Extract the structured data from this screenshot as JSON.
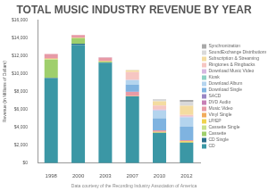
{
  "chart_data": {
    "type": "bar",
    "title": "TOTAL MUSIC INDUSTRY REVENUE BY YEAR",
    "subtitle": "Data courtesy of the Recording Industry Association of America",
    "y_label": "Revenue (in Millions of Dollars)",
    "categories": [
      "1998",
      "2000",
      "2003",
      "2007",
      "2010",
      "2012"
    ],
    "stacked": true,
    "legend": "right",
    "grid": false,
    "ylim": [
      0,
      16000
    ],
    "yticks": [
      {
        "value": 0,
        "label": "$0"
      },
      {
        "value": 2000,
        "label": "$2,000"
      },
      {
        "value": 4000,
        "label": "$4,000"
      },
      {
        "value": 6000,
        "label": "$6,000"
      },
      {
        "value": 8000,
        "label": "$8,000"
      },
      {
        "value": 10000,
        "label": "$10,000"
      },
      {
        "value": 12000,
        "label": "$12,000"
      },
      {
        "value": 14000,
        "label": "$14,000"
      },
      {
        "value": 16000,
        "label": "$16,000"
      }
    ],
    "series": [
      {
        "name": "CD",
        "color": "#3b97a5",
        "values": [
          9480,
          13200,
          11200,
          7450,
          3400,
          2300
        ]
      },
      {
        "name": "CD Single",
        "color": "#2c6f8c",
        "values": [
          60,
          140,
          40,
          10,
          0,
          0
        ]
      },
      {
        "name": "Cassette",
        "color": "#9fcf6c",
        "values": [
          2000,
          630,
          110,
          3,
          0,
          0
        ]
      },
      {
        "name": "Cassette Single",
        "color": "#c9e08c",
        "values": [
          90,
          5,
          0,
          0,
          0,
          0
        ]
      },
      {
        "name": "LP/EP",
        "color": "#efd24e",
        "values": [
          30,
          30,
          20,
          20,
          90,
          160
        ]
      },
      {
        "name": "Vinyl Single",
        "color": "#f1ab5c",
        "values": [
          30,
          25,
          20,
          5,
          5,
          5
        ]
      },
      {
        "name": "Music Video",
        "color": "#e79aa6",
        "values": [
          510,
          280,
          400,
          480,
          170,
          100
        ]
      },
      {
        "name": "DVD Audio",
        "color": "#c77fb5",
        "values": [
          0,
          0,
          10,
          3,
          0,
          0
        ]
      },
      {
        "name": "SACD",
        "color": "#9a86c4",
        "values": [
          0,
          0,
          25,
          3,
          0,
          0
        ]
      },
      {
        "name": "Download Single",
        "color": "#7fb3e0",
        "values": [
          0,
          0,
          0,
          810,
          1340,
          1500
        ]
      },
      {
        "name": "Download Album",
        "color": "#b4d4ee",
        "values": [
          0,
          0,
          0,
          500,
          880,
          1050
        ]
      },
      {
        "name": "Kiosk",
        "color": "#8fd1c4",
        "values": [
          0,
          0,
          0,
          2,
          6,
          2
        ]
      },
      {
        "name": "Download Music Video",
        "color": "#d6b7e0",
        "values": [
          0,
          0,
          0,
          30,
          110,
          100
        ]
      },
      {
        "name": "Ringtones & Ringbacks",
        "color": "#f6c6c2",
        "values": [
          0,
          0,
          0,
          870,
          450,
          170
        ]
      },
      {
        "name": "Subscription & Streaming",
        "color": "#f4dca0",
        "values": [
          0,
          0,
          0,
          200,
          470,
          1020
        ]
      },
      {
        "name": "SoundExchange Distributions",
        "color": "#d9d9d9",
        "values": [
          0,
          0,
          0,
          40,
          250,
          460
        ]
      },
      {
        "name": "Synchronization",
        "color": "#a9a9a9",
        "values": [
          0,
          0,
          0,
          0,
          0,
          190
        ]
      }
    ]
  }
}
